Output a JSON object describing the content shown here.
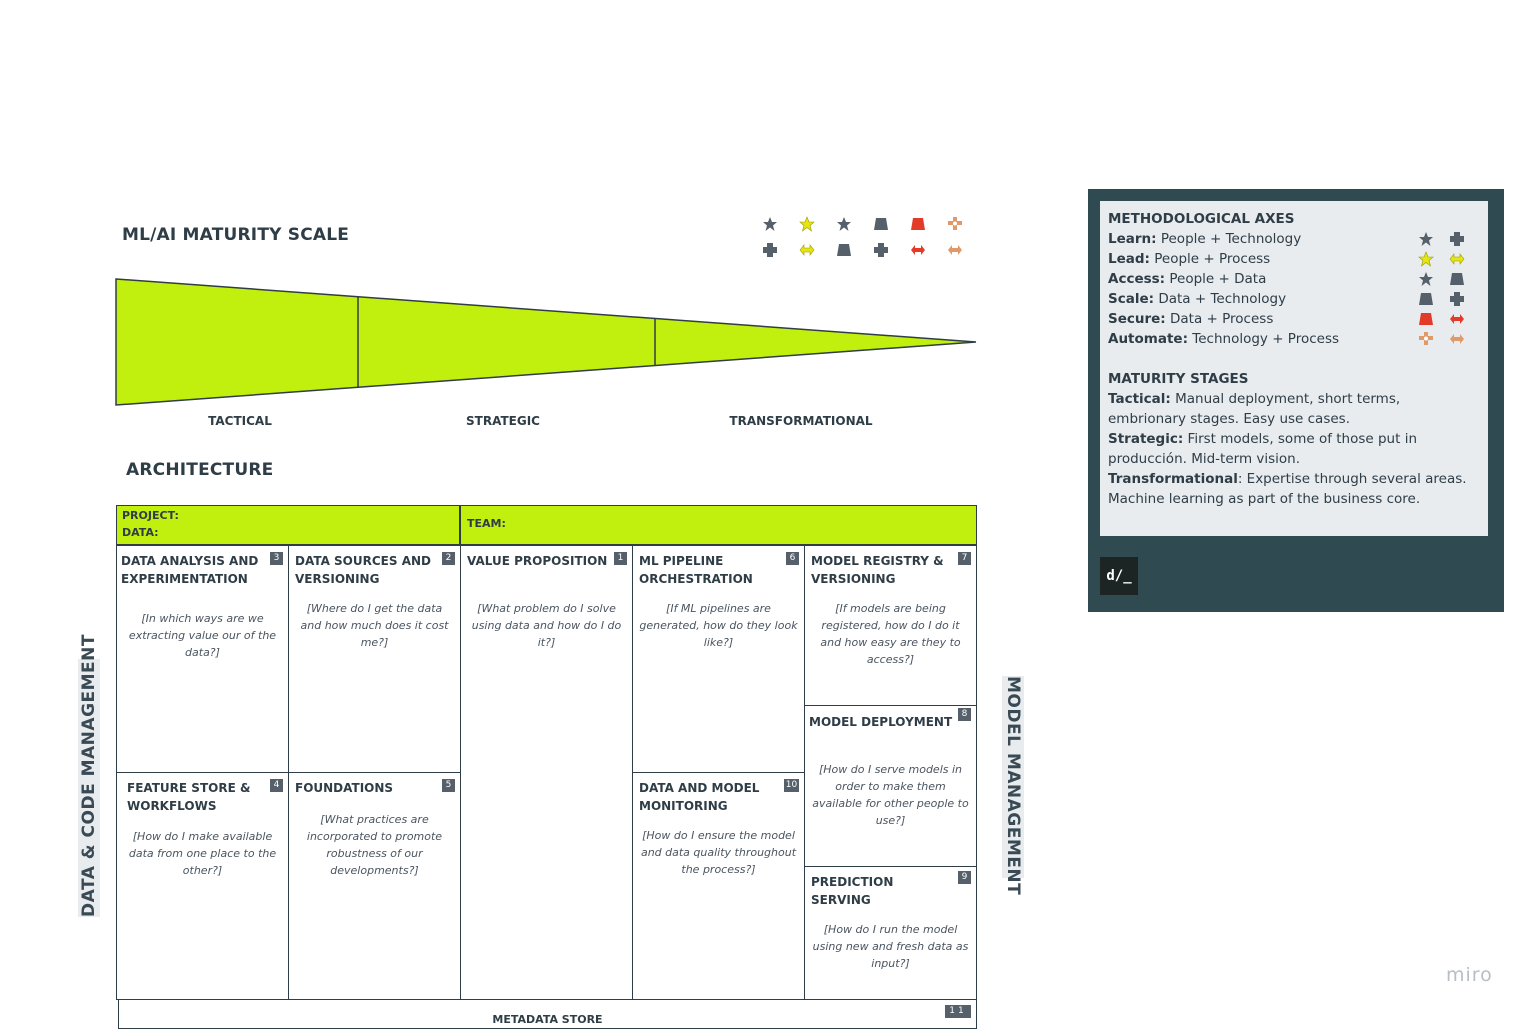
{
  "maturity": {
    "title": "ML/AI MATURITY SCALE",
    "stages": [
      "TACTICAL",
      "STRATEGIC",
      "TRANSFORMATIONAL"
    ],
    "fill_color": "#c1ef0e"
  },
  "legend_icons": {
    "row1": [
      "star-icon",
      "star-icon",
      "star-icon",
      "trapezoid-icon",
      "trapezoid-icon",
      "gear-icon"
    ],
    "row2": [
      "cross-icon",
      "double-arrow-icon",
      "trapezoid-icon",
      "cross-icon",
      "double-arrow-icon",
      "double-arrow-icon"
    ]
  },
  "architecture": {
    "title": "ARCHITECTURE",
    "project_label": "PROJECT:",
    "data_label": "DATA:",
    "team_label": "TEAM:",
    "left_side": "DATA & CODE MANAGEMENT",
    "right_side": "MODEL MANAGEMENT",
    "cells": {
      "data_analysis": {
        "title": "DATA ANALYSIS AND EXPERIMENTATION",
        "num": "3",
        "q": "[In which ways are we extracting value our of the data?]"
      },
      "data_sources": {
        "title": "DATA SOURCES AND VERSIONING",
        "num": "2",
        "q": "[Where do I get the data and how much does it cost me?]"
      },
      "value_prop": {
        "title": "VALUE PROPOSITION",
        "num": "1",
        "q": "[What problem do I solve using data and how do I do it?]"
      },
      "ml_pipeline": {
        "title": "ML PIPELINE ORCHESTRATION",
        "num": "6",
        "q": "[If ML pipelines are generated, how do they look like?]"
      },
      "model_registry": {
        "title": "MODEL REGISTRY & VERSIONING",
        "num": "7",
        "q": "[If models are being registered, how do I do it and how easy are they to access?]"
      },
      "model_deployment": {
        "title": "MODEL DEPLOYMENT",
        "num": "8",
        "q": "[How do I serve models in order to make them available for other people to use?]"
      },
      "feature_store": {
        "title": "FEATURE STORE & WORKFLOWS",
        "num": "4",
        "q": "[How do I make available data from one place to the other?]"
      },
      "foundations": {
        "title": "FOUNDATIONS",
        "num": "5",
        "q": "[What practices are incorporated to promote robustness of our developments?]"
      },
      "monitoring": {
        "title": "DATA AND MODEL MONITORING",
        "num": "10",
        "q": "[How do I ensure the model and data quality throughout the process?]"
      },
      "prediction": {
        "title": "PREDICTION SERVING",
        "num": "9",
        "q": "[How do I run the model using new and fresh data as input?]"
      },
      "metadata": {
        "title": "METADATA STORE",
        "num": "11"
      }
    }
  },
  "panel": {
    "axes_title": "METHODOLOGICAL AXES",
    "axes": [
      {
        "name": "Learn:",
        "desc": "People + Technology",
        "icons": [
          "star-icon",
          "cross-icon"
        ]
      },
      {
        "name": "Lead:",
        "desc": "People + Process",
        "icons": [
          "star-icon",
          "double-arrow-icon"
        ]
      },
      {
        "name": "Access:",
        "desc": "People + Data",
        "icons": [
          "star-icon",
          "trapezoid-icon"
        ]
      },
      {
        "name": "Scale:",
        "desc": "Data + Technology",
        "icons": [
          "trapezoid-icon",
          "cross-icon"
        ]
      },
      {
        "name": "Secure:",
        "desc": "Data + Process",
        "icons": [
          "trapezoid-icon",
          "double-arrow-icon"
        ]
      },
      {
        "name": "Automate:",
        "desc": "Technology + Process",
        "icons": [
          "gear-icon",
          "double-arrow-icon"
        ]
      }
    ],
    "stages_title": "MATURITY STAGES",
    "stages": [
      {
        "name": "Tactical:",
        "desc": "Manual deployment, short terms, embrionary stages. Easy use cases."
      },
      {
        "name": "Strategic:",
        "desc": "First models, some of those put in producción. Mid-term vision."
      },
      {
        "name": "Transformational",
        "desc": ": Expertise through several areas. Machine learning as part of the business core."
      }
    ],
    "logo": "d/_"
  },
  "watermark": "miro",
  "colors": {
    "people": "#55606a",
    "lead": "#e5e510",
    "secure": "#e23b2a",
    "automate": "#e09a6a",
    "panel_bg": "#2f4a51",
    "accent": "#c1ef0e"
  }
}
